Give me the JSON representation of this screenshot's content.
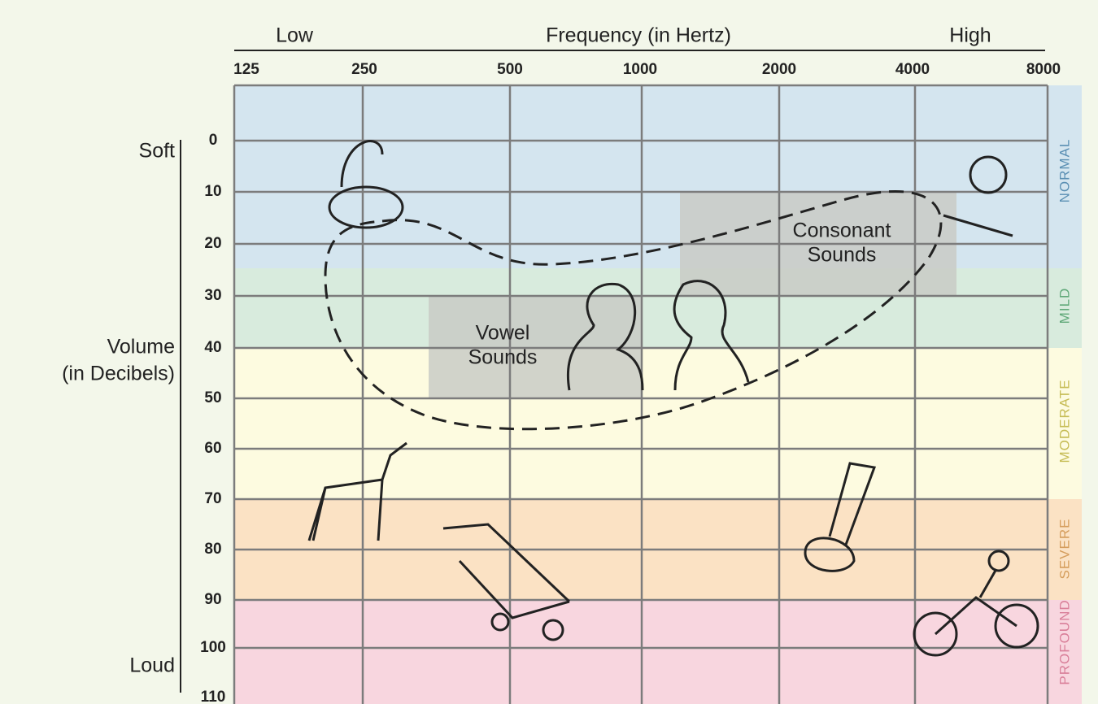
{
  "frequency_axis": {
    "low": "Low",
    "title": "Frequency (in Hertz)",
    "high": "High",
    "ticks": [
      125,
      250,
      500,
      1000,
      2000,
      4000,
      8000
    ]
  },
  "volume_axis": {
    "soft": "Soft",
    "title": [
      "Volume",
      "(in Decibels)"
    ],
    "loud": "Loud",
    "ticks": [
      0,
      10,
      20,
      30,
      40,
      50,
      60,
      70,
      80,
      90,
      100,
      110
    ]
  },
  "areas": {
    "vowel": [
      "Vowel",
      "Sounds"
    ],
    "consonant": [
      "Consonant",
      "Sounds"
    ]
  },
  "zones": [
    {
      "label": "NORMAL",
      "color": "#5a8fb3"
    },
    {
      "label": "MILD",
      "color": "#5fa878"
    },
    {
      "label": "MODERATE",
      "color": "#c6bc55"
    },
    {
      "label": "SEVERE",
      "color": "#d59d5c"
    },
    {
      "label": "PROFOUND",
      "color": "#d97f99"
    }
  ]
}
